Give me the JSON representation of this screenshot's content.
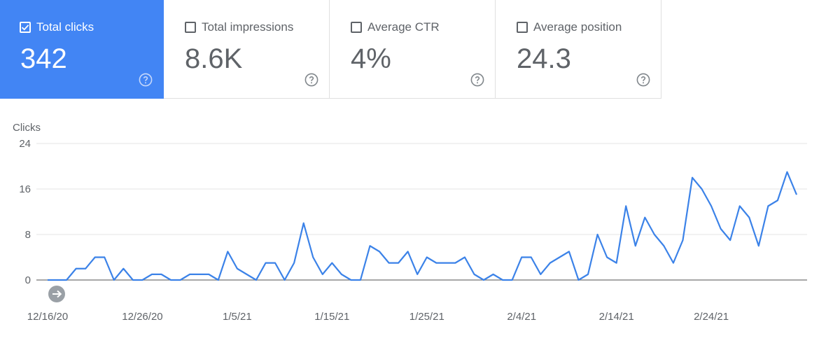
{
  "metrics": [
    {
      "label": "Total clicks",
      "value": "342",
      "selected": true
    },
    {
      "label": "Total impressions",
      "value": "8.6K",
      "selected": false
    },
    {
      "label": "Average CTR",
      "value": "4%",
      "selected": false
    },
    {
      "label": "Average position",
      "value": "24.3",
      "selected": false
    }
  ],
  "colors": {
    "accent": "#4285f4",
    "line": "#3b82e8",
    "text": "#5f6368",
    "grid": "#e6e6e6"
  },
  "chart_data": {
    "type": "line",
    "ylabel": "Clicks",
    "ylim": [
      0,
      24
    ],
    "yticks": [
      0,
      8,
      16,
      24
    ],
    "grid": true,
    "x_start": "12/16/20",
    "x_tick_labels": [
      "12/16/20",
      "12/26/20",
      "1/5/21",
      "1/15/21",
      "1/25/21",
      "2/4/21",
      "2/14/21",
      "2/24/21"
    ],
    "series": [
      {
        "values": [
          0,
          0,
          0,
          2,
          2,
          4,
          4,
          0,
          2,
          0,
          0,
          1,
          1,
          0,
          0,
          1,
          1,
          1,
          0,
          5,
          2,
          1,
          0,
          3,
          3,
          0,
          3,
          10,
          4,
          1,
          3,
          1,
          0,
          0,
          6,
          5,
          3,
          3,
          5,
          1,
          4,
          3,
          3,
          3,
          4,
          1,
          0,
          1,
          0,
          0,
          4,
          4,
          1,
          3,
          4,
          5,
          0,
          1,
          8,
          4,
          3,
          13,
          6,
          11,
          8,
          6,
          3,
          7,
          18,
          16,
          13,
          9,
          7,
          13,
          11,
          6,
          13,
          14,
          19,
          15
        ]
      }
    ]
  }
}
